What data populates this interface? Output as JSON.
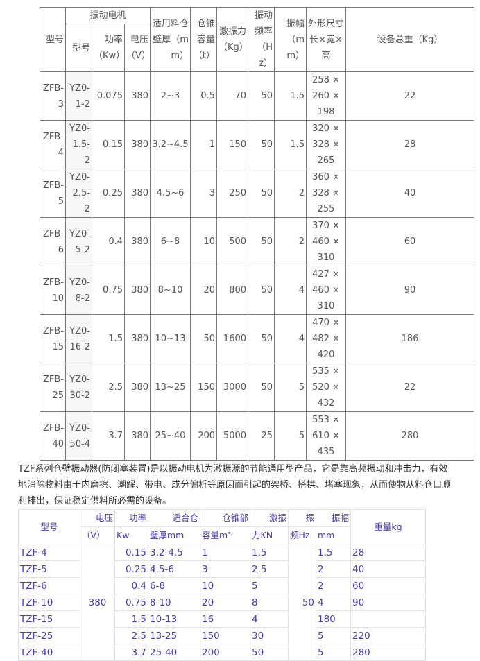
{
  "table1": {
    "headers": {
      "model": "型号",
      "motor": "振动电机",
      "motor_model": "型号",
      "power": "功率（Kw）",
      "voltage": "电压（V）",
      "wall": "适用料仓壁厚（mm）",
      "cone": "仓锥容量（t）",
      "force": "激振力（Kg）",
      "freq": "振动频率（Hz）",
      "amp": "振幅（mm）",
      "size": "外形尺寸长×宽×高",
      "weight": "设备总重（Kg）"
    },
    "rows": [
      {
        "model": "ZFB-3",
        "motor": "YZ0-1-2",
        "power": "0.075",
        "voltage": "380",
        "wall": "2~3",
        "cone": "0.5",
        "force": "70",
        "freq": "50",
        "amp": "1.5",
        "size": "258 × 260 × 198",
        "weight": "22"
      },
      {
        "model": "ZFB-4",
        "motor": "YZ0-1.5-2",
        "power": "0.15",
        "voltage": "380",
        "wall": "3.2~4.5",
        "cone": "1",
        "force": "150",
        "freq": "50",
        "amp": "1.5",
        "size": "320 × 328 × 265",
        "weight": "28"
      },
      {
        "model": "ZFB-5",
        "motor": "YZ0-2.5-2",
        "power": "0.25",
        "voltage": "380",
        "wall": "4.5~6",
        "cone": "3",
        "force": "250",
        "freq": "50",
        "amp": "2",
        "size": "360 × 328 × 255",
        "weight": "40"
      },
      {
        "model": "ZFB-6",
        "motor": "YZ0-5-2",
        "power": "0.4",
        "voltage": "380",
        "wall": "6~8",
        "cone": "10",
        "force": "500",
        "freq": "50",
        "amp": "2",
        "size": "370 × 460 × 310",
        "weight": "60"
      },
      {
        "model": "ZFB-10",
        "motor": "YZ0-8-2",
        "power": "0.75",
        "voltage": "380",
        "wall": "8~10",
        "cone": "20",
        "force": "800",
        "freq": "50",
        "amp": "4",
        "size": "427 × 460 × 310",
        "weight": "90"
      },
      {
        "model": "ZFB-15",
        "motor": "YZ0-16-2",
        "power": "1.5",
        "voltage": "380",
        "wall": "10~13",
        "cone": "50",
        "force": "1600",
        "freq": "50",
        "amp": "4",
        "size": "470 × 482 × 420",
        "weight": "186"
      },
      {
        "model": "ZFB-25",
        "motor": "YZ0-30-2",
        "power": "2.5",
        "voltage": "380",
        "wall": "13~25",
        "cone": "150",
        "force": "3000",
        "freq": "50",
        "amp": "5",
        "size": "535 × 520 × 432",
        "weight": "22"
      },
      {
        "model": "ZFB-40",
        "motor": "YZ0-50-4",
        "power": "3.7",
        "voltage": "380",
        "wall": "25~40",
        "cone": "200",
        "force": "5000",
        "freq": "25",
        "amp": "5",
        "size": "553 × 610 × 435",
        "weight": "280"
      }
    ]
  },
  "paragraph": [
    "TZF系列仓壁振动器(防闭塞装置)是以振动电机为激振源的节能通用型产品，它是靠高频振动和冲击力，有效",
    "地消除物料由于内磨擦、潮解、带电、成分偏析等原因而引起的架桥、搭拱、堵塞现象，从而使物从料仓口顺",
    "利排出，保证稳定供料所必需的设备。"
  ],
  "table2": {
    "headers": [
      [
        "型号"
      ],
      [
        "电压",
        "（V）"
      ],
      [
        "功率",
        "Kw"
      ],
      [
        "适合仓",
        "壁厚mm"
      ],
      [
        "仓锥部",
        "容量m³"
      ],
      [
        "激振",
        "力KN"
      ],
      [
        "振",
        "频Hz"
      ],
      [
        "振幅",
        "mm"
      ],
      [
        "重量kg"
      ]
    ],
    "voltage": "380",
    "freq": "50",
    "rows": [
      {
        "model": "TZF-4",
        "power": "0.15",
        "wall": "3.2-4.5",
        "cone": "1",
        "force": "1.5",
        "amp": "1.5",
        "weight": "28"
      },
      {
        "model": "TZF-5",
        "power": "0.25",
        "wall": "4.5-6",
        "cone": "3",
        "force": "2.5",
        "amp": "2",
        "weight": "40"
      },
      {
        "model": "TZF-6",
        "power": "0.4",
        "wall": "6-8",
        "cone": "10",
        "force": "5",
        "amp": "2",
        "weight": "60"
      },
      {
        "model": "TZF-10",
        "power": "0.75",
        "wall": "8-10",
        "cone": "20",
        "force": "8",
        "amp": "4",
        "weight": "90"
      },
      {
        "model": "TZF-15",
        "power": "1.5",
        "wall": "10-13",
        "cone": "16",
        "force": "4",
        "amp": "180",
        "weight": ""
      },
      {
        "model": "TZF-25",
        "power": "2.5",
        "wall": "13-25",
        "cone": "150",
        "force": "30",
        "amp": "5",
        "weight": "220"
      },
      {
        "model": "TZF-40",
        "power": "3.7",
        "wall": "25-40",
        "cone": "200",
        "force": "50",
        "amp": "5",
        "weight": "280"
      }
    ]
  }
}
